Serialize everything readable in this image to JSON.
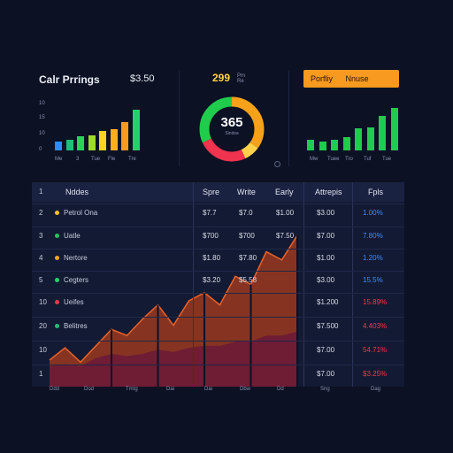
{
  "top_left": {
    "title": "Calr Prrings",
    "price": "$3.50",
    "yticks": [
      "10",
      "15",
      "10",
      "0"
    ],
    "xticks": [
      "Me",
      "3",
      "Tue",
      "Fle",
      "Tre"
    ],
    "bar_colors": [
      "#2a8cff",
      "#18c27a",
      "#2bd354",
      "#9ddc2a",
      "#ffd21f",
      "#ffb018",
      "#f59c1a",
      "#23d36a"
    ],
    "bar_values": [
      0.18,
      0.22,
      0.28,
      0.3,
      0.4,
      0.42,
      0.58,
      0.82
    ]
  },
  "donut": {
    "top_value": "299",
    "top_unit": "Pm\nRe",
    "center_value": "365",
    "center_sub": "Sindsa",
    "segments": [
      {
        "value": 0.35,
        "color": "#f5a21a"
      },
      {
        "value": 0.08,
        "color": "#ffd24a"
      },
      {
        "value": 0.25,
        "color": "#f0334e"
      },
      {
        "value": 0.32,
        "color": "#1fcc4c"
      }
    ]
  },
  "top_right": {
    "button_label": "Porfliy",
    "button_label2": "Nnuse",
    "xticks": [
      "Mw",
      "Tuee",
      "Tro",
      "Tuf",
      "Tue"
    ],
    "bar_values": [
      0.22,
      0.18,
      0.22,
      0.26,
      0.45,
      0.46,
      0.7,
      0.85
    ]
  },
  "table": {
    "headers": [
      "Nddes",
      "Spre",
      "Write",
      "Early",
      "Attrepis",
      "Fpls"
    ],
    "row_numbers": [
      "1",
      "2",
      "3",
      "4",
      "5",
      "10",
      "20",
      "10",
      "1"
    ],
    "rows": [
      {
        "name": "Nddes",
        "dot": "#5566cc",
        "c1": "",
        "c2": "",
        "c3": "",
        "c4": "",
        "pct": "",
        "pct_color": "#3f8cff"
      },
      {
        "name": "Petrol Ona",
        "dot": "#f5c518",
        "c1": "$7.7",
        "c2": "$7.0",
        "c3": "$1.00",
        "c4": "$3.00",
        "pct": "1.00%",
        "pct_color": "#3f8cff"
      },
      {
        "name": "Uatle",
        "dot": "#23c35a",
        "c1": "$700",
        "c2": "$700",
        "c3": "$7.50",
        "c4": "$7.00",
        "pct": "7.80%",
        "pct_color": "#3f8cff"
      },
      {
        "name": "Nertore",
        "dot": "#f5a21a",
        "c1": "$1.80",
        "c2": "$7.80",
        "c3": "",
        "c4": "$1.00",
        "pct": "1.20%",
        "pct_color": "#3f8cff"
      },
      {
        "name": "Cegters",
        "dot": "#23d36a",
        "c1": "$3.20",
        "c2": "$5.58",
        "c3": "",
        "c4": "$3.00",
        "pct": "15.5%",
        "pct_color": "#3f8cff"
      },
      {
        "name": "Ueifes",
        "dot": "#f0334e",
        "c1": "",
        "c2": "",
        "c3": "",
        "c4": "$1.200",
        "pct": "15.89%",
        "pct_color": "#ff3348"
      },
      {
        "name": "Belitres",
        "dot": "#1fbf7a",
        "c1": "",
        "c2": "",
        "c3": "",
        "c4": "$7.500",
        "pct": "4.403%",
        "pct_color": "#ff3348"
      },
      {
        "name": "",
        "dot": "",
        "c1": "",
        "c2": "",
        "c3": "",
        "c4": "$7.00",
        "pct": "54.71%",
        "pct_color": "#ff3348"
      },
      {
        "name": "",
        "dot": "",
        "c1": "",
        "c2": "",
        "c3": "",
        "c4": "$7.00",
        "pct": "$3.25%",
        "pct_color": "#ff3348"
      }
    ],
    "bottom_ticks": [
      "Ddd",
      "Dod",
      "Tmtg",
      "Dai",
      "Dai",
      "Dbw",
      "Dd",
      "Sng",
      "Dag"
    ]
  },
  "area_chart": {
    "line_color": "#e8622a",
    "top_values": [
      0.13,
      0.19,
      0.12,
      0.2,
      0.28,
      0.25,
      0.33,
      0.4,
      0.3,
      0.42,
      0.46,
      0.4,
      0.54,
      0.5,
      0.66,
      0.62,
      0.74
    ],
    "bottom_values": [
      0.1,
      0.11,
      0.1,
      0.14,
      0.16,
      0.15,
      0.16,
      0.18,
      0.17,
      0.19,
      0.2,
      0.2,
      0.22,
      0.22,
      0.25,
      0.25,
      0.27
    ]
  }
}
